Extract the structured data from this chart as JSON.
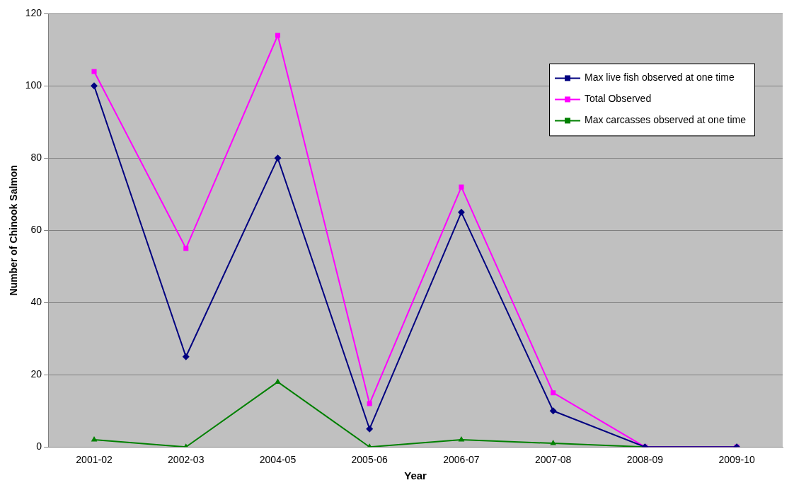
{
  "chart_data": {
    "type": "line",
    "xlabel": "Year",
    "ylabel": "Number of Chinook Salmon",
    "categories": [
      "2001-02",
      "2002-03",
      "2004-05",
      "2005-06",
      "2006-07",
      "2007-08",
      "2008-09",
      "2009-10"
    ],
    "series": [
      {
        "name": "Max live fish observed at one time",
        "color": "#000080",
        "marker": "diamond",
        "values": [
          100,
          25,
          80,
          5,
          65,
          10,
          0,
          0
        ]
      },
      {
        "name": "Total Observed",
        "color": "#ff00ff",
        "marker": "square",
        "values": [
          104,
          55,
          114,
          12,
          72,
          15,
          0,
          0
        ]
      },
      {
        "name": "Max carcasses observed at one time",
        "color": "#008000",
        "marker": "triangle",
        "values": [
          2,
          0,
          18,
          0,
          2,
          1,
          0,
          0
        ]
      }
    ],
    "ylim": [
      0,
      120
    ],
    "yticks": [
      0,
      20,
      40,
      60,
      80,
      100,
      120
    ],
    "grid": "y",
    "legend": "top right",
    "line_style": "solid"
  }
}
